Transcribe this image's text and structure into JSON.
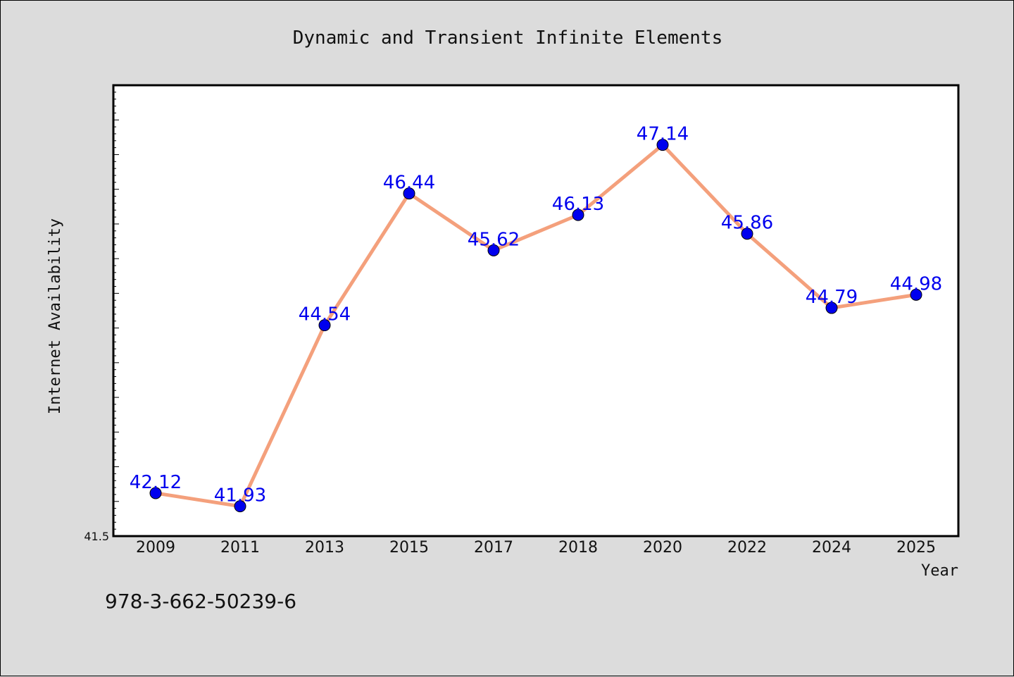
{
  "chart_data": {
    "type": "line",
    "title": "Dynamic and Transient Infinite Elements",
    "xlabel": "Year",
    "ylabel": "Internet Availability",
    "categories": [
      "2009",
      "2011",
      "2013",
      "2015",
      "2017",
      "2018",
      "2020",
      "2022",
      "2024",
      "2025"
    ],
    "series": [
      {
        "values": [
          42.12,
          41.93,
          44.54,
          46.44,
          45.62,
          46.13,
          47.14,
          45.86,
          44.79,
          44.98
        ]
      }
    ],
    "ylim": [
      41.5,
      48.0
    ],
    "y_tick_label": "41.5",
    "data_labels": [
      "42.12",
      "41.93",
      "44.54",
      "46.44",
      "45.62",
      "46.13",
      "47.14",
      "45.86",
      "44.79",
      "44.98"
    ],
    "grid": false,
    "legend": "none",
    "colors": {
      "line": "#f4a07c",
      "marker": "#0000ee",
      "label": "#0000ee",
      "background": "#dcdcdc",
      "plot_area": "#ffffff"
    }
  },
  "footnote": "978-3-662-50239-6"
}
